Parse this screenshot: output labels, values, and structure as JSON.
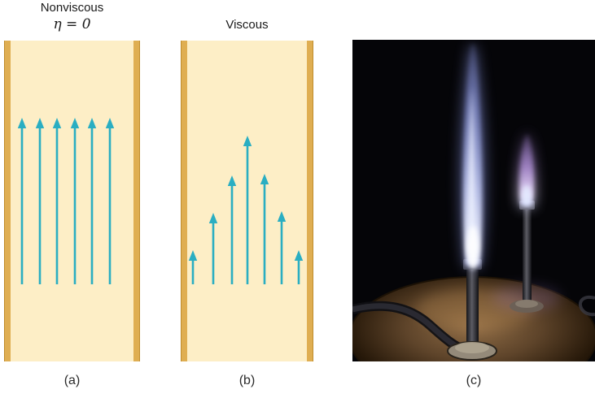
{
  "panels": {
    "a": {
      "title": "Nonviscous",
      "subtitle": "η = 0",
      "caption": "(a)",
      "arrows": {
        "baseline": 300,
        "x": [
          22,
          44,
          65,
          87,
          108,
          130
        ],
        "heights": [
          205,
          205,
          205,
          205,
          205,
          205
        ]
      }
    },
    "b": {
      "title": "Viscous",
      "caption": "(b)",
      "arrows": {
        "baseline": 300,
        "x": [
          15,
          40,
          63,
          82,
          103,
          124,
          145
        ],
        "heights": [
          42,
          88,
          134,
          183,
          136,
          90,
          42
        ]
      }
    },
    "c": {
      "caption": "(c)",
      "alt": "Photograph of two Bunsen burners with tall blue and violet flames on a round metal base in the dark"
    }
  },
  "colors": {
    "arrow": "#2aaec2",
    "tube_fill": "#fdeec6",
    "tube_wall": "#dfae52",
    "tube_wall_edge": "#c08c2c",
    "background": "#ffffff"
  }
}
